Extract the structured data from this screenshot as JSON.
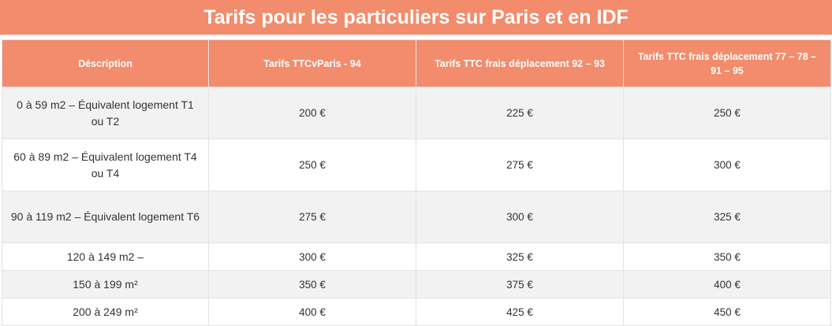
{
  "title": "Tarifs pour les particuliers sur Paris et en IDF",
  "table": {
    "headers": [
      "Déscription",
      "Tarifs TTCvParis - 94",
      "Tarifs TTC frais déplacement 92 – 93",
      "Tarifs TTC frais déplacement 77 – 78 – 91 – 95"
    ],
    "rows": [
      [
        "0 à 59 m2 – Équivalent logement T1 ou T2",
        "200 €",
        "225 €",
        "250 €"
      ],
      [
        "60 à 89 m2 – Équivalent logement T4 ou T4",
        "250 €",
        "275 €",
        "300 €"
      ],
      [
        "90 à 119 m2 – Équivalent logement T6",
        "275 €",
        "300 €",
        "325 €"
      ],
      [
        "120 à 149 m2 –",
        "300 €",
        "325 €",
        "350 €"
      ],
      [
        "150 à 199 m²",
        "350 €",
        "375 €",
        "400 €"
      ],
      [
        "200 à 249 m²",
        "400 €",
        "425 €",
        "450 €"
      ]
    ]
  },
  "colors": {
    "header_bg": "#f28c6c",
    "header_text": "#ffffff",
    "row_alt_bg": "#f2f2f2",
    "body_text": "#333333"
  }
}
